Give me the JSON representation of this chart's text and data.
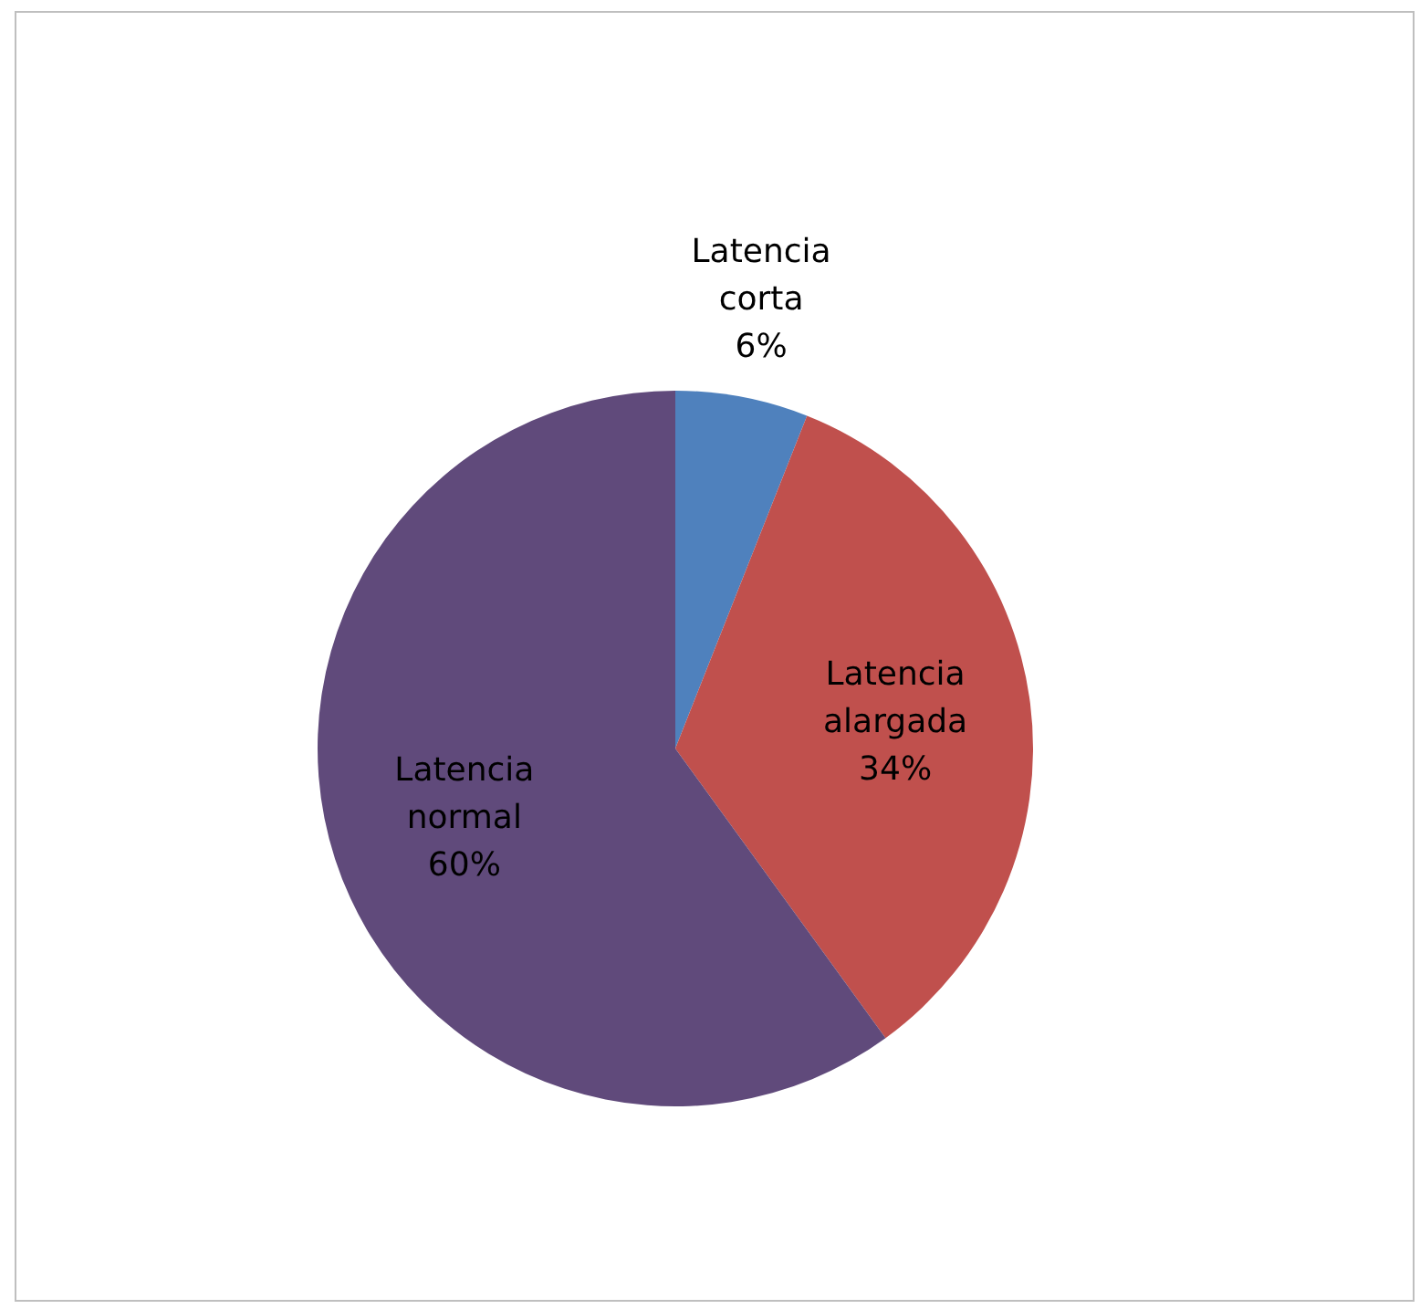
{
  "chart_data": {
    "type": "pie",
    "categories": [
      "Latencia corta",
      "Latencia alargada",
      "Latencia normal"
    ],
    "values": [
      6,
      34,
      60
    ],
    "colors": [
      "#4f81bd",
      "#c0504d",
      "#604a7b"
    ],
    "value_labels": [
      "6%",
      "34%",
      "60%"
    ],
    "legend": false
  }
}
